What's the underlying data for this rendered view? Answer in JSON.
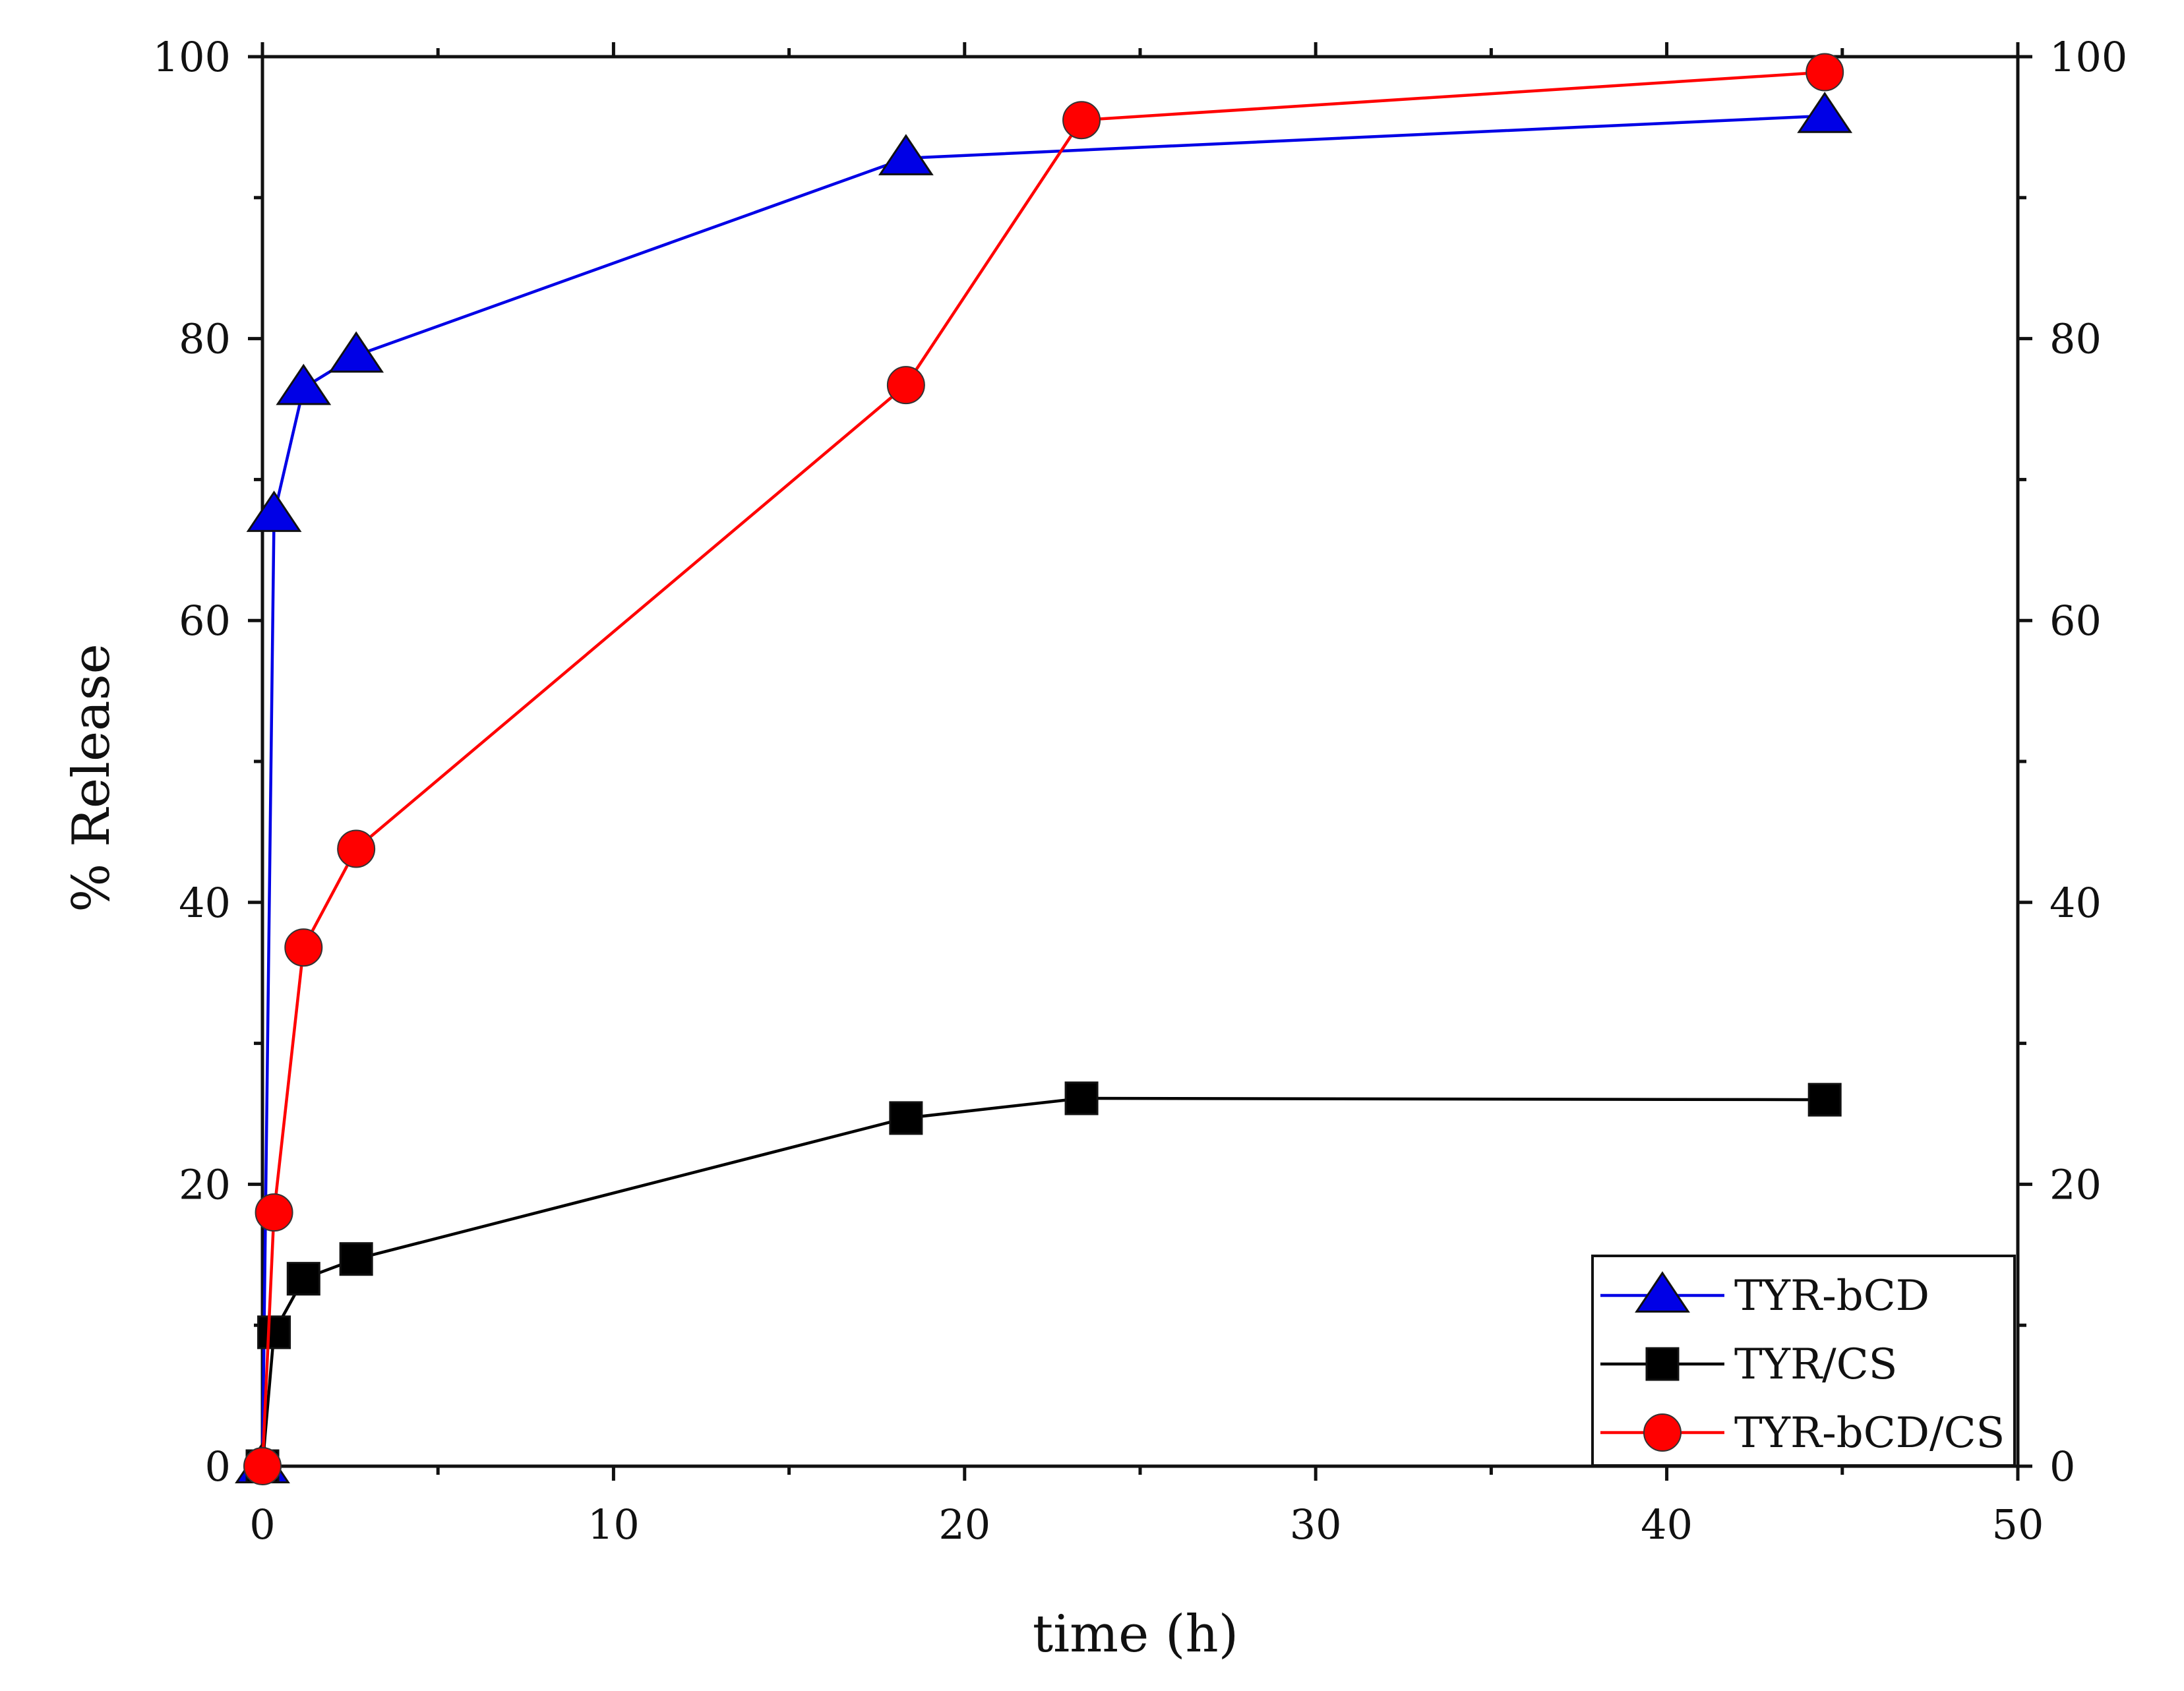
{
  "chart_data": {
    "type": "line",
    "title": "",
    "xlabel": "time (h)",
    "ylabel": "% Release",
    "xlim": [
      0,
      50
    ],
    "ylim": [
      0,
      100
    ],
    "xticks": [
      0,
      10,
      20,
      30,
      40,
      50
    ],
    "yticks": [
      0,
      20,
      40,
      60,
      80,
      100
    ],
    "right_axis_ticks": [
      0,
      20,
      40,
      60,
      80,
      100
    ],
    "grid": false,
    "legend_position": "bottom-right",
    "series": [
      {
        "name": "TYR-bCD",
        "color": "#0000e6",
        "marker": "triangle",
        "x": [
          0,
          0.33,
          1.17,
          2.67,
          18.33,
          44.5
        ],
        "y": [
          0,
          67.5,
          76.5,
          78.8,
          92.8,
          95.8
        ]
      },
      {
        "name": "TYR/CS",
        "color": "#000000",
        "marker": "square",
        "x": [
          0,
          0.33,
          1.17,
          2.67,
          18.33,
          23.33,
          44.5
        ],
        "y": [
          0,
          9.5,
          13.3,
          14.7,
          24.7,
          26.1,
          26.0
        ]
      },
      {
        "name": "TYR-bCD/CS",
        "color": "#ff0000",
        "marker": "circle",
        "x": [
          0,
          0.33,
          1.17,
          2.67,
          18.33,
          23.33,
          44.5
        ],
        "y": [
          0,
          18.0,
          36.8,
          43.8,
          76.7,
          95.5,
          98.9
        ]
      }
    ]
  }
}
